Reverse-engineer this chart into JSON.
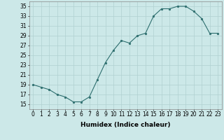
{
  "x": [
    0,
    1,
    2,
    3,
    4,
    5,
    6,
    7,
    8,
    9,
    10,
    11,
    12,
    13,
    14,
    15,
    16,
    17,
    18,
    19,
    20,
    21,
    22,
    23
  ],
  "y": [
    19,
    18.5,
    18,
    17,
    16.5,
    15.5,
    15.5,
    16.5,
    20,
    23.5,
    26,
    28,
    27.5,
    29,
    29.5,
    33,
    34.5,
    34.5,
    35,
    35,
    34,
    32.5,
    29.5,
    29.5
  ],
  "line_color": "#2d6e6e",
  "marker_color": "#2d6e6e",
  "bg_color": "#cce8e8",
  "grid_color": "#b0d0d0",
  "xlabel": "Humidex (Indice chaleur)",
  "xlim": [
    -0.5,
    23.5
  ],
  "ylim": [
    14,
    36
  ],
  "yticks": [
    15,
    17,
    19,
    21,
    23,
    25,
    27,
    29,
    31,
    33,
    35
  ],
  "xticks": [
    0,
    1,
    2,
    3,
    4,
    5,
    6,
    7,
    8,
    9,
    10,
    11,
    12,
    13,
    14,
    15,
    16,
    17,
    18,
    19,
    20,
    21,
    22,
    23
  ],
  "tick_fontsize": 5.5,
  "label_fontsize": 6.5
}
